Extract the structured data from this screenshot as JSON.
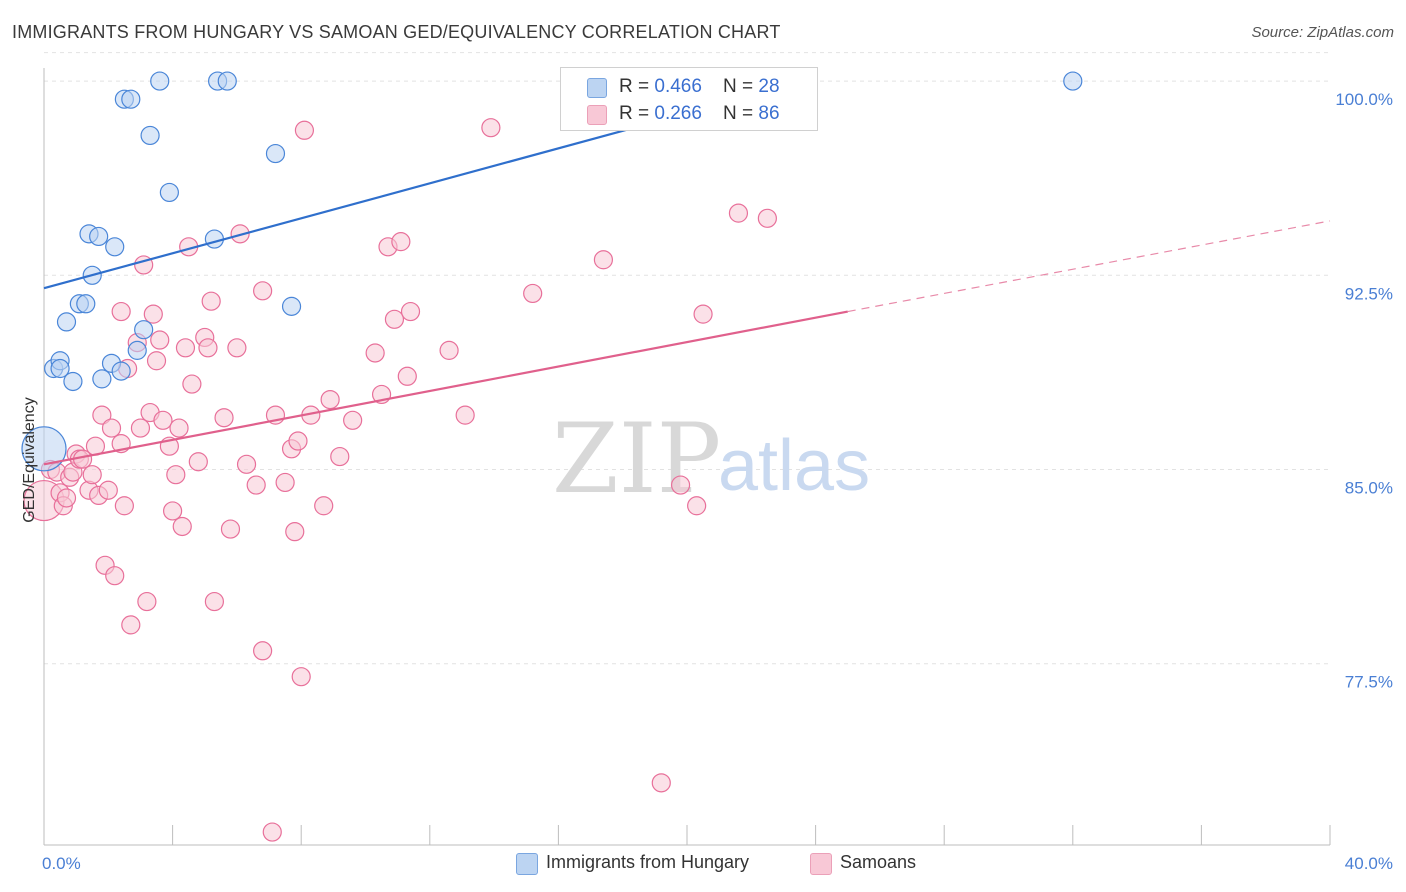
{
  "header": {
    "title": "IMMIGRANTS FROM HUNGARY VS SAMOAN GED/EQUIVALENCY CORRELATION CHART",
    "source": "Source: ZipAtlas.com"
  },
  "legend": {
    "series1": {
      "r_label": "R = ",
      "r_value": "0.466",
      "n_label": "N = ",
      "n_value": "28",
      "color": "#aac8f0"
    },
    "series2": {
      "r_label": "R = ",
      "r_value": "0.266",
      "n_label": "N = ",
      "n_value": "86",
      "color": "#f6bccd"
    }
  },
  "bottom_legend": {
    "series1": "Immigrants from Hungary",
    "series2": "Samoans"
  },
  "watermark": {
    "zip": "ZIP",
    "atlas": "atlas"
  },
  "chart_data": {
    "type": "scatter",
    "title": "IMMIGRANTS FROM HUNGARY VS SAMOAN GED/EQUIVALENCY CORRELATION CHART",
    "xlabel": "",
    "ylabel": "GED/Equivalency",
    "xlim": [
      0,
      40
    ],
    "ylim": [
      70.5,
      101.2
    ],
    "x_tick_labels": [
      "0.0%",
      "40.0%"
    ],
    "y_ticks": [
      77.5,
      85.0,
      92.5,
      100.0
    ],
    "y_tick_labels": [
      "77.5%",
      "85.0%",
      "92.5%",
      "100.0%"
    ],
    "grid": true,
    "colors": {
      "hungary": "#4a86d8",
      "samoan": "#e8709a",
      "hungary_fill": "#bcd4f2",
      "samoan_fill": "#f8c8d6"
    },
    "series": [
      {
        "name": "Immigrants from Hungary",
        "trend": {
          "x": [
            0,
            23.4
          ],
          "y": [
            92.0,
            99.9
          ]
        },
        "points": [
          [
            0.0,
            85.8,
            22
          ],
          [
            0.3,
            88.9,
            9
          ],
          [
            0.5,
            89.2,
            9
          ],
          [
            0.5,
            88.9,
            9
          ],
          [
            0.7,
            90.7,
            9
          ],
          [
            0.9,
            88.4,
            9
          ],
          [
            1.1,
            91.4,
            9
          ],
          [
            1.3,
            91.4,
            9
          ],
          [
            1.4,
            94.1,
            9
          ],
          [
            1.5,
            92.5,
            9
          ],
          [
            1.7,
            94.0,
            9
          ],
          [
            1.8,
            88.5,
            9
          ],
          [
            2.1,
            89.1,
            9
          ],
          [
            2.2,
            93.6,
            9
          ],
          [
            2.4,
            88.8,
            9
          ],
          [
            2.5,
            99.3,
            9
          ],
          [
            2.7,
            99.3,
            9
          ],
          [
            2.9,
            89.6,
            9
          ],
          [
            3.1,
            90.4,
            9
          ],
          [
            3.3,
            97.9,
            9
          ],
          [
            3.6,
            100.0,
            9
          ],
          [
            3.9,
            95.7,
            9
          ],
          [
            5.3,
            93.9,
            9
          ],
          [
            5.4,
            100.0,
            9
          ],
          [
            5.7,
            100.0,
            9
          ],
          [
            7.2,
            97.2,
            9
          ],
          [
            7.7,
            91.3,
            9
          ],
          [
            32.0,
            100.0,
            9
          ]
        ]
      },
      {
        "name": "Samoans",
        "trend": {
          "x": [
            0,
            25
          ],
          "y": [
            85.2,
            91.1
          ]
        },
        "trend_dashed": {
          "x": [
            25,
            40
          ],
          "y": [
            91.1,
            94.6
          ]
        },
        "points": [
          [
            0.0,
            83.8,
            20
          ],
          [
            0.2,
            85.0,
            9
          ],
          [
            0.4,
            84.9,
            9
          ],
          [
            0.5,
            84.1,
            9
          ],
          [
            0.6,
            83.6,
            9
          ],
          [
            0.7,
            83.9,
            9
          ],
          [
            0.8,
            84.7,
            9
          ],
          [
            0.9,
            84.9,
            9
          ],
          [
            1.0,
            85.6,
            9
          ],
          [
            1.1,
            85.4,
            9
          ],
          [
            1.2,
            85.4,
            9
          ],
          [
            1.4,
            84.2,
            9
          ],
          [
            1.5,
            84.8,
            9
          ],
          [
            1.6,
            85.9,
            9
          ],
          [
            1.7,
            84.0,
            9
          ],
          [
            1.8,
            87.1,
            9
          ],
          [
            1.9,
            81.3,
            9
          ],
          [
            2.0,
            84.2,
            9
          ],
          [
            2.1,
            86.6,
            9
          ],
          [
            2.2,
            80.9,
            9
          ],
          [
            2.4,
            86.0,
            9
          ],
          [
            2.4,
            91.1,
            9
          ],
          [
            2.5,
            83.6,
            9
          ],
          [
            2.6,
            88.9,
            9
          ],
          [
            2.7,
            79.0,
            9
          ],
          [
            2.9,
            89.9,
            9
          ],
          [
            3.0,
            86.6,
            9
          ],
          [
            3.1,
            92.9,
            9
          ],
          [
            3.2,
            79.9,
            9
          ],
          [
            3.3,
            87.2,
            9
          ],
          [
            3.4,
            91.0,
            9
          ],
          [
            3.5,
            89.2,
            9
          ],
          [
            3.6,
            90.0,
            9
          ],
          [
            3.7,
            86.9,
            9
          ],
          [
            3.9,
            85.9,
            9
          ],
          [
            4.0,
            83.4,
            9
          ],
          [
            4.1,
            84.8,
            9
          ],
          [
            4.2,
            86.6,
            9
          ],
          [
            4.3,
            82.8,
            9
          ],
          [
            4.4,
            89.7,
            9
          ],
          [
            4.5,
            93.6,
            9
          ],
          [
            4.6,
            88.3,
            9
          ],
          [
            4.8,
            85.3,
            9
          ],
          [
            5.0,
            90.1,
            9
          ],
          [
            5.1,
            89.7,
            9
          ],
          [
            5.2,
            91.5,
            9
          ],
          [
            5.3,
            79.9,
            9
          ],
          [
            5.6,
            87.0,
            9
          ],
          [
            5.8,
            82.7,
            9
          ],
          [
            6.0,
            89.7,
            9
          ],
          [
            6.1,
            94.1,
            9
          ],
          [
            6.3,
            85.2,
            9
          ],
          [
            6.6,
            84.4,
            9
          ],
          [
            6.8,
            91.9,
            9
          ],
          [
            6.8,
            78.0,
            9
          ],
          [
            7.1,
            71.0,
            9
          ],
          [
            7.2,
            87.1,
            9
          ],
          [
            7.5,
            84.5,
            9
          ],
          [
            7.7,
            85.8,
            9
          ],
          [
            7.8,
            82.6,
            9
          ],
          [
            7.9,
            86.1,
            9
          ],
          [
            8.0,
            77.0,
            9
          ],
          [
            8.1,
            98.1,
            9
          ],
          [
            8.3,
            87.1,
            9
          ],
          [
            8.7,
            83.6,
            9
          ],
          [
            8.9,
            87.7,
            9
          ],
          [
            9.2,
            85.5,
            9
          ],
          [
            9.6,
            86.9,
            9
          ],
          [
            10.3,
            89.5,
            9
          ],
          [
            10.5,
            87.9,
            9
          ],
          [
            10.7,
            93.6,
            9
          ],
          [
            10.9,
            90.8,
            9
          ],
          [
            11.1,
            93.8,
            9
          ],
          [
            11.3,
            88.6,
            9
          ],
          [
            11.4,
            91.1,
            9
          ],
          [
            12.6,
            89.6,
            9
          ],
          [
            13.1,
            87.1,
            9
          ],
          [
            13.9,
            98.2,
            9
          ],
          [
            15.2,
            91.8,
            9
          ],
          [
            17.4,
            93.1,
            9
          ],
          [
            19.2,
            72.9,
            9
          ],
          [
            19.8,
            84.4,
            9
          ],
          [
            20.3,
            83.6,
            9
          ],
          [
            20.5,
            91.0,
            9
          ],
          [
            21.6,
            94.9,
            9
          ],
          [
            22.5,
            94.7,
            9
          ]
        ]
      }
    ]
  }
}
